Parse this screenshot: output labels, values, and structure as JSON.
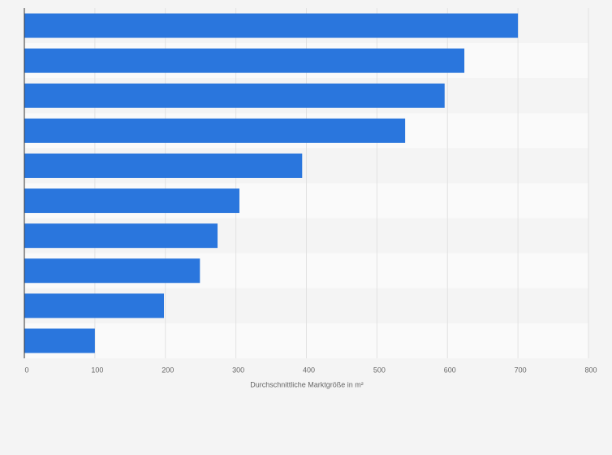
{
  "chart_data": {
    "type": "bar",
    "orientation": "horizontal",
    "x_label": "Durchschnittliche Marktgröße in m²",
    "categories": [
      null,
      null,
      null,
      null,
      null,
      null,
      null,
      null,
      null,
      null
    ],
    "values": [
      700,
      624,
      596,
      540,
      394,
      305,
      274,
      249,
      198,
      100
    ],
    "color": "#2a76dd",
    "xlim": [
      0,
      800
    ],
    "xticks": [
      0,
      100,
      200,
      300,
      400,
      500,
      600,
      700,
      800
    ],
    "grid": true
  }
}
